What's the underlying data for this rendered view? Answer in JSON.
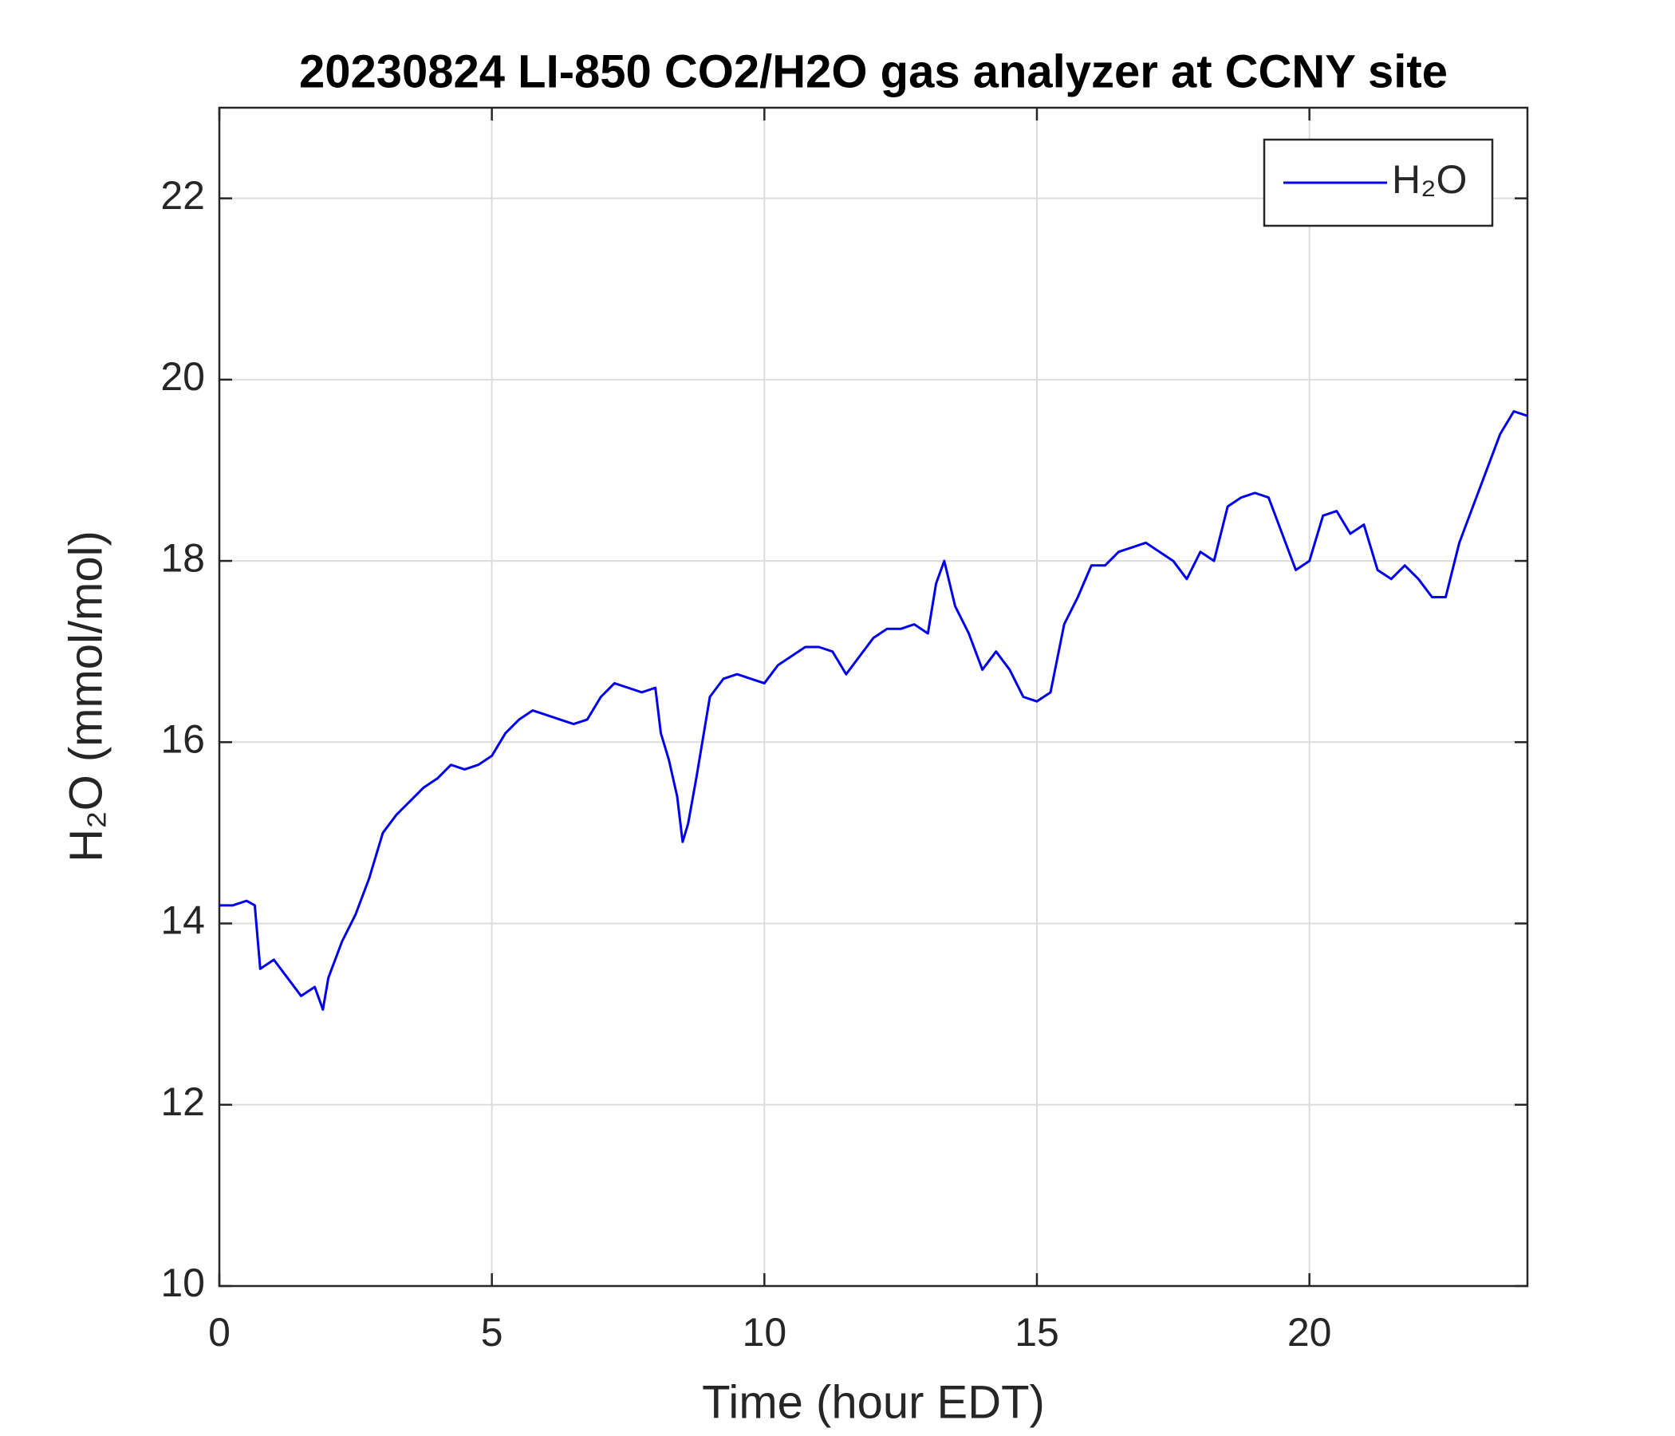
{
  "chart_data": {
    "type": "line",
    "title": "20230824 LI-850 CO2/H2O gas analyzer at CCNY site",
    "xlabel": "Time (hour EDT)",
    "ylabel": "H₂O (mmol/mol)",
    "x": [
      0,
      0.25,
      0.5,
      0.65,
      0.75,
      1.0,
      1.25,
      1.5,
      1.75,
      1.9,
      2.0,
      2.25,
      2.5,
      2.75,
      3.0,
      3.25,
      3.5,
      3.75,
      4.0,
      4.25,
      4.5,
      4.75,
      5.0,
      5.25,
      5.5,
      5.75,
      6.0,
      6.25,
      6.5,
      6.75,
      7.0,
      7.25,
      7.5,
      7.75,
      8.0,
      8.1,
      8.25,
      8.4,
      8.5,
      8.6,
      8.75,
      9.0,
      9.25,
      9.5,
      9.75,
      10.0,
      10.25,
      10.5,
      10.75,
      11.0,
      11.25,
      11.5,
      11.75,
      12.0,
      12.25,
      12.5,
      12.75,
      13.0,
      13.15,
      13.3,
      13.5,
      13.75,
      14.0,
      14.25,
      14.5,
      14.75,
      15.0,
      15.25,
      15.5,
      15.75,
      16.0,
      16.25,
      16.5,
      16.75,
      17.0,
      17.25,
      17.5,
      17.75,
      18.0,
      18.25,
      18.5,
      18.75,
      19.0,
      19.25,
      19.5,
      19.75,
      20.0,
      20.25,
      20.5,
      20.75,
      21.0,
      21.25,
      21.5,
      21.75,
      22.0,
      22.25,
      22.5,
      22.75,
      23.0,
      23.25,
      23.5,
      23.75,
      24.0
    ],
    "series": [
      {
        "name": "H₂O",
        "color": "#0000ee",
        "values": [
          14.2,
          14.2,
          14.25,
          14.2,
          13.5,
          13.6,
          13.4,
          13.2,
          13.3,
          13.05,
          13.4,
          13.8,
          14.1,
          14.5,
          15.0,
          15.2,
          15.35,
          15.5,
          15.6,
          15.75,
          15.7,
          15.75,
          15.85,
          16.1,
          16.25,
          16.35,
          16.3,
          16.25,
          16.2,
          16.25,
          16.5,
          16.65,
          16.6,
          16.55,
          16.6,
          16.1,
          15.8,
          15.4,
          14.9,
          15.1,
          15.6,
          16.5,
          16.7,
          16.75,
          16.7,
          16.65,
          16.85,
          16.95,
          17.05,
          17.05,
          17.0,
          16.75,
          16.95,
          17.15,
          17.25,
          17.25,
          17.3,
          17.2,
          17.75,
          18.0,
          17.5,
          17.2,
          16.8,
          17.0,
          16.8,
          16.5,
          16.45,
          16.55,
          17.3,
          17.6,
          17.95,
          17.95,
          18.1,
          18.15,
          18.2,
          18.1,
          18.0,
          17.8,
          18.1,
          18.0,
          18.6,
          18.7,
          18.75,
          18.7,
          18.3,
          17.9,
          18.0,
          18.5,
          18.55,
          18.3,
          18.4,
          17.9,
          17.8,
          17.95,
          17.8,
          17.6,
          17.6,
          18.2,
          18.6,
          19.0,
          19.4,
          19.65,
          19.6
        ]
      }
    ],
    "xlim": [
      0,
      24
    ],
    "xticks": [
      0,
      5,
      10,
      15,
      20
    ],
    "ylim": [
      10,
      23
    ],
    "yticks": [
      10,
      12,
      14,
      16,
      18,
      20,
      22
    ],
    "grid": true,
    "legend": "upper right"
  }
}
